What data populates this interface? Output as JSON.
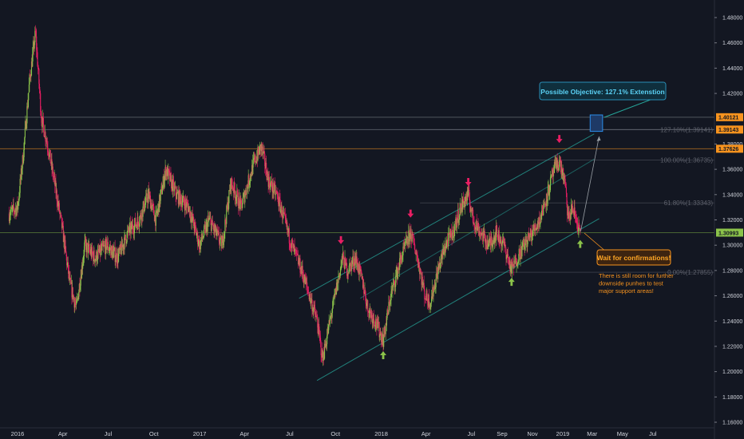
{
  "chart_data": {
    "type": "candlestick",
    "title": "",
    "xlabel": "",
    "ylabel": "",
    "ylim": [
      1.151,
      1.495
    ],
    "x_ticks": [
      {
        "label": "2016",
        "date": "2016-01-01"
      },
      {
        "label": "Apr",
        "date": "2016-04-01"
      },
      {
        "label": "Jul",
        "date": "2016-07-01"
      },
      {
        "label": "Oct",
        "date": "2016-10-01"
      },
      {
        "label": "2017",
        "date": "2017-01-01"
      },
      {
        "label": "Apr",
        "date": "2017-04-01"
      },
      {
        "label": "Jul",
        "date": "2017-07-01"
      },
      {
        "label": "Oct",
        "date": "2017-10-01"
      },
      {
        "label": "2018",
        "date": "2018-01-01"
      },
      {
        "label": "Apr",
        "date": "2018-04-01"
      },
      {
        "label": "Jul",
        "date": "2018-07-01"
      },
      {
        "label": "Sep",
        "date": "2018-09-01"
      },
      {
        "label": "Nov",
        "date": "2018-11-01"
      },
      {
        "label": "2019",
        "date": "2019-01-01"
      },
      {
        "label": "Mar",
        "date": "2019-03-01"
      },
      {
        "label": "May",
        "date": "2019-05-01"
      },
      {
        "label": "Jul",
        "date": "2019-07-01"
      }
    ],
    "y_ticks": [
      "1.48000",
      "1.46000",
      "1.44000",
      "1.42000",
      "1.38000",
      "1.36000",
      "1.34000",
      "1.32000",
      "1.30000",
      "1.28000",
      "1.26000",
      "1.24000",
      "1.22000",
      "1.20000",
      "1.18000",
      "1.16000"
    ],
    "price_path": [
      [
        "2015-12-15",
        1.325
      ],
      [
        "2016-01-01",
        1.33
      ],
      [
        "2016-01-12",
        1.37
      ],
      [
        "2016-01-25",
        1.43
      ],
      [
        "2016-02-06",
        1.468
      ],
      [
        "2016-02-18",
        1.4
      ],
      [
        "2016-03-01",
        1.38
      ],
      [
        "2016-03-15",
        1.35
      ],
      [
        "2016-04-01",
        1.31
      ],
      [
        "2016-04-15",
        1.27
      ],
      [
        "2016-04-28",
        1.25
      ],
      [
        "2016-05-15",
        1.3
      ],
      [
        "2016-06-05",
        1.29
      ],
      [
        "2016-06-28",
        1.3
      ],
      [
        "2016-07-20",
        1.29
      ],
      [
        "2016-08-10",
        1.31
      ],
      [
        "2016-09-01",
        1.32
      ],
      [
        "2016-09-20",
        1.34
      ],
      [
        "2016-10-05",
        1.32
      ],
      [
        "2016-10-25",
        1.36
      ],
      [
        "2016-11-15",
        1.34
      ],
      [
        "2016-12-10",
        1.33
      ],
      [
        "2017-01-01",
        1.3
      ],
      [
        "2017-01-20",
        1.32
      ],
      [
        "2017-02-15",
        1.3
      ],
      [
        "2017-03-05",
        1.35
      ],
      [
        "2017-03-25",
        1.33
      ],
      [
        "2017-04-20",
        1.365
      ],
      [
        "2017-05-05",
        1.378
      ],
      [
        "2017-05-20",
        1.35
      ],
      [
        "2017-06-05",
        1.34
      ],
      [
        "2017-06-20",
        1.32
      ],
      [
        "2017-07-05",
        1.3
      ],
      [
        "2017-07-25",
        1.28
      ],
      [
        "2017-08-10",
        1.26
      ],
      [
        "2017-08-25",
        1.24
      ],
      [
        "2017-09-05",
        1.21
      ],
      [
        "2017-09-15",
        1.23
      ],
      [
        "2017-09-30",
        1.26
      ],
      [
        "2017-10-15",
        1.29
      ],
      [
        "2017-10-25",
        1.28
      ],
      [
        "2017-11-10",
        1.29
      ],
      [
        "2017-11-25",
        1.27
      ],
      [
        "2017-12-05",
        1.25
      ],
      [
        "2017-12-20",
        1.24
      ],
      [
        "2018-01-05",
        1.225
      ],
      [
        "2018-01-20",
        1.26
      ],
      [
        "2018-02-10",
        1.29
      ],
      [
        "2018-03-01",
        1.31
      ],
      [
        "2018-03-15",
        1.29
      ],
      [
        "2018-03-30",
        1.26
      ],
      [
        "2018-04-10",
        1.255
      ],
      [
        "2018-04-25",
        1.28
      ],
      [
        "2018-05-10",
        1.3
      ],
      [
        "2018-05-25",
        1.31
      ],
      [
        "2018-06-10",
        1.33
      ],
      [
        "2018-06-25",
        1.34
      ],
      [
        "2018-07-05",
        1.32
      ],
      [
        "2018-07-20",
        1.31
      ],
      [
        "2018-08-05",
        1.3
      ],
      [
        "2018-08-20",
        1.31
      ],
      [
        "2018-09-05",
        1.3
      ],
      [
        "2018-09-20",
        1.28
      ],
      [
        "2018-10-01",
        1.29
      ],
      [
        "2018-10-15",
        1.3
      ],
      [
        "2018-11-01",
        1.31
      ],
      [
        "2018-11-15",
        1.32
      ],
      [
        "2018-12-01",
        1.34
      ],
      [
        "2018-12-15",
        1.36
      ],
      [
        "2018-12-25",
        1.366
      ],
      [
        "2019-01-05",
        1.35
      ],
      [
        "2019-01-12",
        1.32
      ],
      [
        "2019-01-20",
        1.33
      ],
      [
        "2019-01-28",
        1.32
      ],
      [
        "2019-02-05",
        1.31
      ]
    ],
    "current_price": {
      "value": 1.30993,
      "label": "1.30993"
    },
    "horizontal_levels": [
      {
        "value": 1.40121,
        "label": "1.40121"
      },
      {
        "value": 1.39143,
        "label": "1.39143"
      },
      {
        "value": 1.37626,
        "label": "1.37626"
      }
    ],
    "fibonacci_levels": [
      {
        "label": "127.10%(1.39141)",
        "value": 1.39141
      },
      {
        "label": "100.00%(1.36735)",
        "value": 1.36735
      },
      {
        "label": "61.80%(1.33343)",
        "value": 1.33343
      },
      {
        "label": "0.00%(1.27855)",
        "value": 1.27855
      }
    ],
    "channel": {
      "upper": [
        [
          "2017-07-20",
          1.258
        ],
        [
          "2019-03-05",
          1.388
        ]
      ],
      "mid": [
        [
          "2017-11-20",
          1.258
        ],
        [
          "2019-03-05",
          1.368
        ]
      ],
      "lower": [
        [
          "2017-08-25",
          1.193
        ],
        [
          "2019-03-15",
          1.321
        ]
      ]
    },
    "objective_box": {
      "date_start": "2019-02-25",
      "date_end": "2019-03-22",
      "price_top": 1.403,
      "price_bottom": 1.39
    },
    "projection_arrow": {
      "from": [
        "2019-02-06",
        1.311
      ],
      "to": [
        "2019-03-15",
        1.386
      ]
    },
    "down_arrows": [
      {
        "date": "2017-10-12",
        "price": 1.304
      },
      {
        "date": "2018-03-01",
        "price": 1.325
      },
      {
        "date": "2018-06-25",
        "price": 1.35
      },
      {
        "date": "2018-12-25",
        "price": 1.384
      }
    ],
    "up_arrows": [
      {
        "date": "2018-01-05",
        "price": 1.213
      },
      {
        "date": "2018-09-20",
        "price": 1.271
      },
      {
        "date": "2019-02-05",
        "price": 1.301
      }
    ],
    "annotations": [
      {
        "text": "Possible Objective: 127.1% Extenstion"
      },
      {
        "text": "Wait for confirmations!"
      },
      {
        "text": "There is still room for further downside punhes to test major support areas!"
      }
    ],
    "colors": {
      "background": "#131722",
      "up": "#8bc34a",
      "down": "#e91e63",
      "channel": "#26a69a",
      "objective": "#2b8ce8",
      "note": "#f7931e"
    }
  }
}
